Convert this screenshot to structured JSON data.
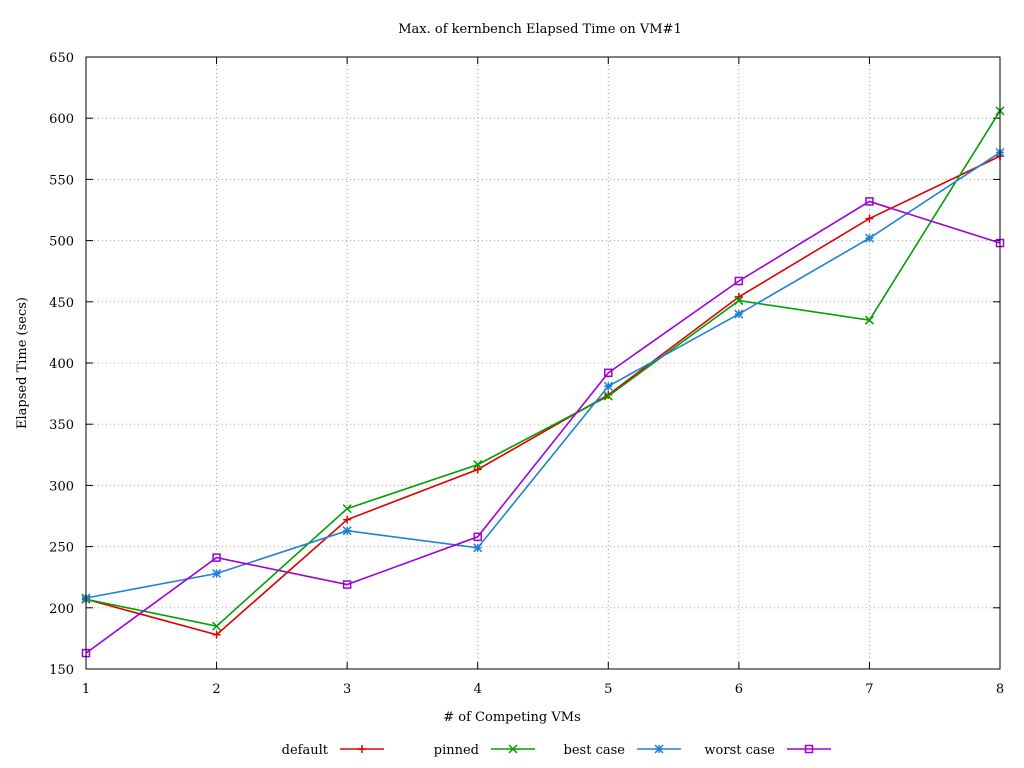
{
  "chart_data": {
    "type": "line",
    "title": "Max. of kernbench Elapsed Time on VM#1",
    "xlabel": "# of Competing VMs",
    "ylabel": "Elapsed Time (secs)",
    "x": [
      1,
      2,
      3,
      4,
      5,
      6,
      7,
      8
    ],
    "xlim": [
      1,
      8
    ],
    "ylim": [
      150,
      650
    ],
    "xticks": [
      1,
      2,
      3,
      4,
      5,
      6,
      7,
      8
    ],
    "yticks": [
      150,
      200,
      250,
      300,
      350,
      400,
      450,
      500,
      550,
      600,
      650
    ],
    "grid": true,
    "legend_position": "bottom",
    "series": [
      {
        "name": "default",
        "color": "#e00000",
        "marker": "plus",
        "values": [
          207,
          178,
          272,
          313,
          374,
          454,
          518,
          569
        ]
      },
      {
        "name": "pinned",
        "color": "#00a000",
        "marker": "cross",
        "values": [
          207,
          185,
          281,
          317,
          373,
          451,
          435,
          606
        ]
      },
      {
        "name": "best case",
        "color": "#1e82d2",
        "marker": "star",
        "values": [
          208,
          228,
          263,
          249,
          381,
          440,
          502,
          572
        ]
      },
      {
        "name": "worst case",
        "color": "#a000d8",
        "marker": "square",
        "values": [
          163,
          241,
          219,
          258,
          392,
          467,
          532,
          498
        ]
      }
    ]
  }
}
